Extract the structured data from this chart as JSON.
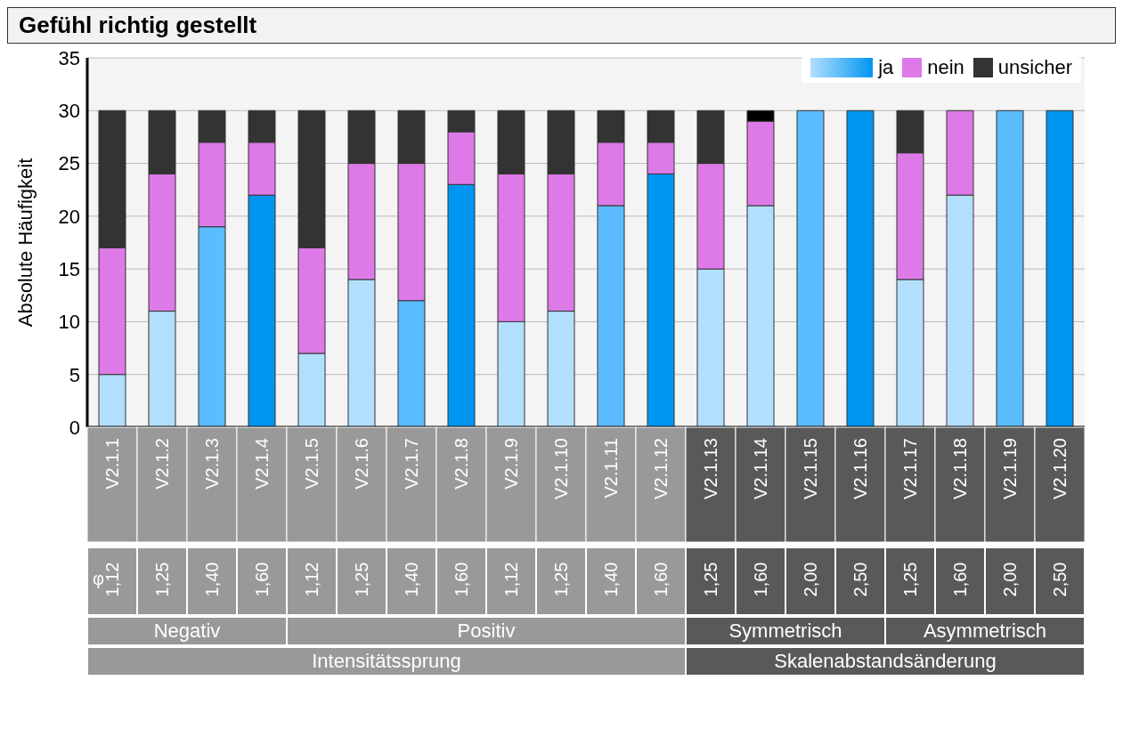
{
  "chart_data": {
    "type": "bar",
    "stacked": true,
    "title": "Gefühl richtig gestellt",
    "ylabel": "Absolute Häufigkeit",
    "categories": [
      "V2.1.1",
      "V2.1.2",
      "V2.1.3",
      "V2.1.4",
      "V2.1.5",
      "V2.1.6",
      "V2.1.7",
      "V2.1.8",
      "V2.1.9",
      "V2.1.10",
      "V2.1.11",
      "V2.1.12",
      "V2.1.13",
      "V2.1.14",
      "V2.1.15",
      "V2.1.16",
      "V2.1.17",
      "V2.1.18",
      "V2.1.19",
      "V2.1.20"
    ],
    "series": [
      {
        "name": "ja",
        "color": "#0096f0",
        "colors": [
          "#b3dfff",
          "#b3dfff",
          "#5bbcff",
          "#0096f0",
          "#b3dfff",
          "#b3dfff",
          "#5bbcff",
          "#0096f0",
          "#b3dfff",
          "#b3dfff",
          "#5bbcff",
          "#0096f0",
          "#b3dfff",
          "#b3dfff",
          "#5bbcff",
          "#0096f0",
          "#b3dfff",
          "#b3dfff",
          "#5bbcff",
          "#0096f0"
        ],
        "values": [
          5,
          11,
          19,
          22,
          7,
          14,
          12,
          23,
          10,
          11,
          21,
          24,
          15,
          21,
          30,
          30,
          14,
          22,
          30,
          30
        ]
      },
      {
        "name": "nein",
        "color": "#dd7ae8",
        "values": [
          12,
          13,
          8,
          5,
          10,
          11,
          13,
          5,
          14,
          13,
          6,
          3,
          10,
          8,
          0,
          0,
          12,
          8,
          0,
          0
        ]
      },
      {
        "name": "unsicher",
        "color": "#333333",
        "colors": [
          "#333333",
          "#333333",
          "#333333",
          "#333333",
          "#333333",
          "#333333",
          "#333333",
          "#333333",
          "#333333",
          "#333333",
          "#333333",
          "#333333",
          "#333333",
          "#000000",
          "#333333",
          "#333333",
          "#333333",
          "#333333",
          "#333333",
          "#333333"
        ],
        "values": [
          13,
          6,
          3,
          3,
          13,
          5,
          5,
          2,
          6,
          6,
          3,
          3,
          5,
          1,
          0,
          0,
          4,
          0,
          0,
          0
        ]
      }
    ],
    "ylim": [
      0,
      35
    ],
    "yticks": [
      0,
      5,
      10,
      15,
      20,
      25,
      30,
      35
    ],
    "grid": "y",
    "legend": "top right",
    "annotations": [
      "φ",
      "1,12",
      "1,25",
      "1,40",
      "1,60",
      "1,12",
      "1,25",
      "1,40",
      "1,60",
      "1,12",
      "1,25",
      "1,40",
      "1,60",
      "1,25",
      "1,60",
      "2,00",
      "2,50",
      "1,25",
      "1,60",
      "2,00",
      "2,50",
      "Negativ",
      "Positiv",
      "Symmetrisch",
      "Asymmetrisch",
      "Intensitätssprung",
      "Skalenabstandsänderung"
    ]
  }
}
